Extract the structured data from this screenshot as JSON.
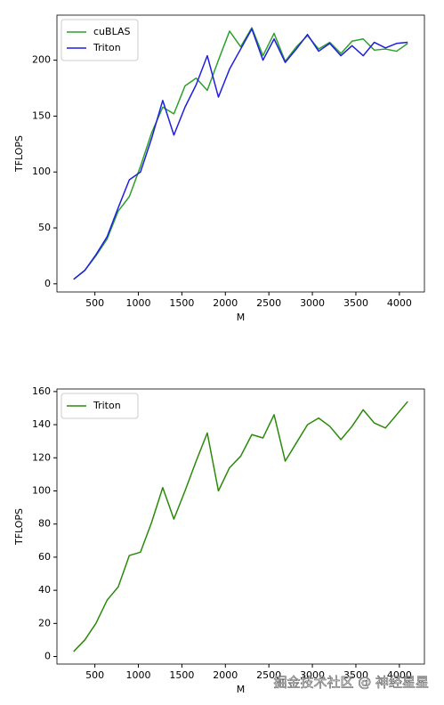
{
  "chart_data": [
    {
      "type": "line",
      "xlabel": "M",
      "ylabel": "TFLOPS",
      "x": [
        256,
        384,
        512,
        640,
        768,
        896,
        1024,
        1152,
        1280,
        1408,
        1536,
        1664,
        1792,
        1920,
        2048,
        2176,
        2304,
        2432,
        2560,
        2688,
        2816,
        2944,
        3072,
        3200,
        3328,
        3456,
        3584,
        3712,
        3840,
        3968,
        4096
      ],
      "series": [
        {
          "name": "cuBLAS",
          "color": "#2ca02c",
          "values": [
            4,
            12,
            25,
            40,
            65,
            78,
            105,
            135,
            158,
            152,
            177,
            184,
            173,
            200,
            226,
            212,
            229,
            204,
            224,
            199,
            212,
            222,
            210,
            216,
            206,
            217,
            219,
            209,
            210,
            208,
            215
          ]
        },
        {
          "name": "Triton",
          "color": "#1f1fe0",
          "values": [
            4,
            12,
            26,
            42,
            68,
            93,
            100,
            130,
            164,
            133,
            158,
            178,
            204,
            167,
            192,
            210,
            228,
            200,
            219,
            198,
            210,
            223,
            208,
            215,
            204,
            213,
            204,
            216,
            211,
            215,
            216
          ]
        }
      ],
      "xlim": [
        64,
        4288
      ],
      "xticks": [
        500,
        1000,
        1500,
        2000,
        2500,
        3000,
        3500,
        4000
      ],
      "ylim": [
        -7.3,
        240.3
      ],
      "yticks": [
        0,
        50,
        100,
        150,
        200
      ],
      "legend": "upper left"
    },
    {
      "type": "line",
      "xlabel": "M",
      "ylabel": "TFLOPS",
      "x": [
        256,
        384,
        512,
        640,
        768,
        896,
        1024,
        1152,
        1280,
        1408,
        1536,
        1664,
        1792,
        1920,
        2048,
        2176,
        2304,
        2432,
        2560,
        2688,
        2816,
        2944,
        3072,
        3200,
        3328,
        3456,
        3584,
        3712,
        3840,
        3968,
        4096
      ],
      "series": [
        {
          "name": "Triton",
          "color": "#2a8a0a",
          "values": [
            3,
            10,
            20,
            34,
            42,
            61,
            63,
            81,
            102,
            83,
            100,
            118,
            135,
            100,
            114,
            121,
            134,
            132,
            146,
            118,
            129,
            140,
            144,
            139,
            131,
            139,
            149,
            141,
            138,
            146,
            154
          ]
        }
      ],
      "xlim": [
        64,
        4288
      ],
      "xticks": [
        500,
        1000,
        1500,
        2000,
        2500,
        3000,
        3500,
        4000
      ],
      "ylim": [
        -4.55,
        161.55
      ],
      "yticks": [
        0,
        20,
        40,
        60,
        80,
        100,
        120,
        140,
        160
      ],
      "legend": "upper left"
    }
  ],
  "watermark": "掘金技术社区 @ 神经星星"
}
